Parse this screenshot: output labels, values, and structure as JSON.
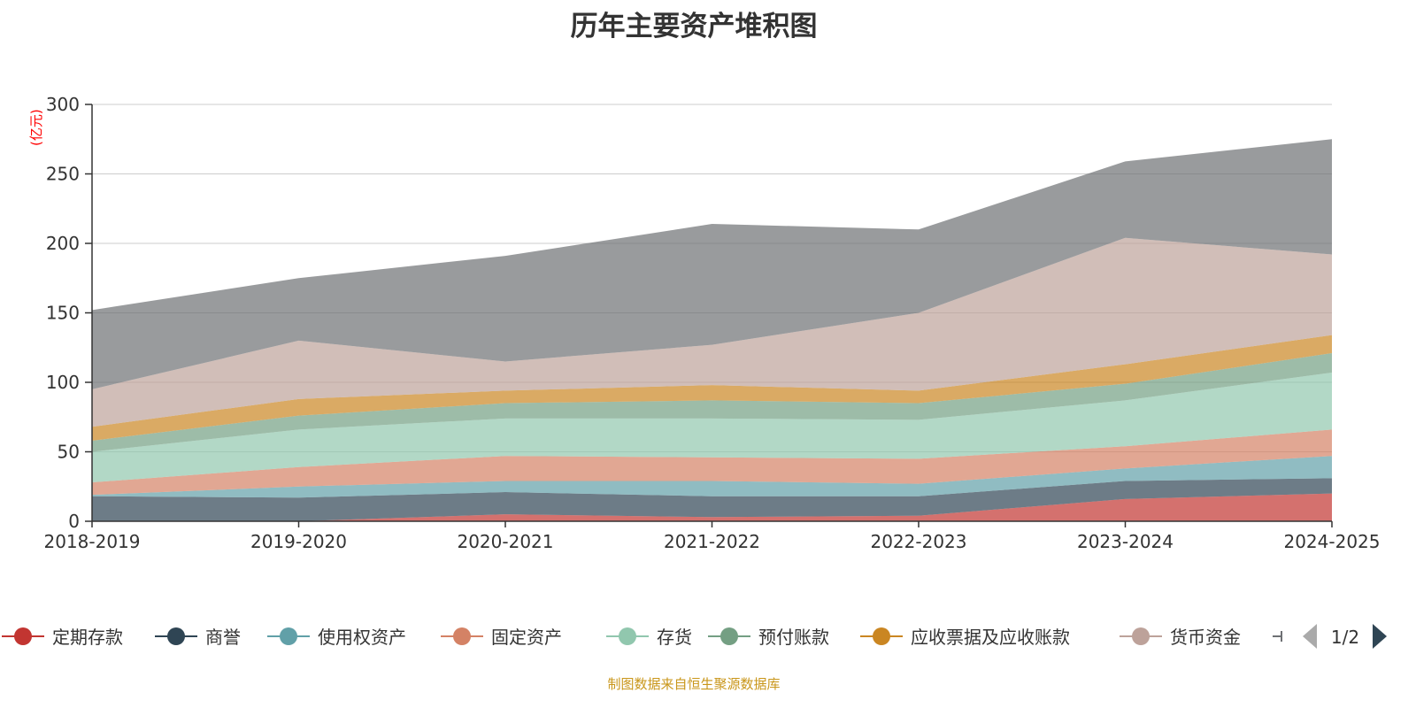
{
  "title": "历年主要资产堆积图",
  "footer": "制图数据来自恒生聚源数据库",
  "legend_page": "1/2",
  "chart_data": {
    "type": "area",
    "stacked": true,
    "title": "历年主要资产堆积图",
    "ylabel": "(亿元)",
    "xlabel": "",
    "ylim": [
      0,
      300
    ],
    "yticks": [
      0,
      50,
      100,
      150,
      200,
      250,
      300
    ],
    "grid": true,
    "legend_placement": "bottom",
    "categories": [
      "2018-2019",
      "2019-2020",
      "2020-2021",
      "2021-2022",
      "2022-2023",
      "2023-2024",
      "2024-2025"
    ],
    "series": [
      {
        "name": "定期存款",
        "color": "#c23531",
        "values": [
          0,
          0,
          5,
          3,
          4,
          16,
          20
        ]
      },
      {
        "name": "商誉",
        "color": "#2f4554",
        "values": [
          18,
          17,
          16,
          15,
          14,
          13,
          11
        ]
      },
      {
        "name": "使用权资产",
        "color": "#61a0a8",
        "values": [
          1,
          8,
          8,
          11,
          9,
          9,
          16
        ]
      },
      {
        "name": "固定资产",
        "color": "#d48265",
        "values": [
          9,
          14,
          18,
          17,
          18,
          16,
          19
        ]
      },
      {
        "name": "存货",
        "color": "#91c7ae",
        "values": [
          22,
          27,
          27,
          28,
          28,
          33,
          41
        ]
      },
      {
        "name": "预付账款",
        "color": "#749f83",
        "values": [
          8,
          10,
          11,
          13,
          12,
          12,
          14
        ]
      },
      {
        "name": "应收票据及应收账款",
        "color": "#ca8622",
        "values": [
          10,
          12,
          9,
          11,
          9,
          14,
          13
        ]
      },
      {
        "name": "货币资金",
        "color": "#bda29a",
        "values": [
          27,
          42,
          21,
          29,
          56,
          91,
          58
        ]
      },
      {
        "color": "#6e7074",
        "values": [
          57,
          45,
          76,
          87,
          60,
          55,
          83
        ]
      }
    ]
  }
}
